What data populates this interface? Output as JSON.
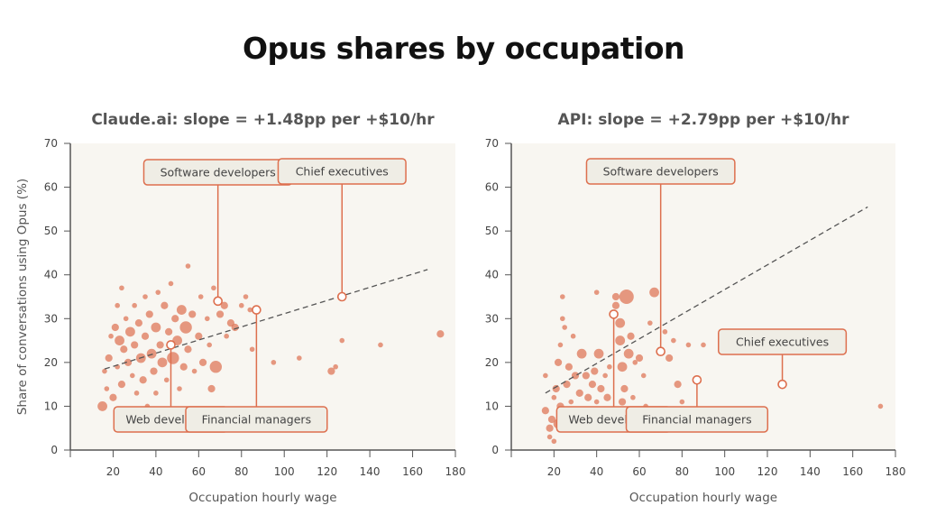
{
  "title": "Opus shares by occupation",
  "chart_data": [
    {
      "type": "scatter",
      "title": "Claude.ai: slope = +1.48pp per +$10/hr",
      "xlabel": "Occupation hourly wage",
      "ylabel": "Share of conversations using Opus (%)",
      "xlim": [
        0,
        180
      ],
      "ylim": [
        0,
        70
      ],
      "xticks": [
        20,
        40,
        60,
        80,
        100,
        120,
        140,
        160,
        180
      ],
      "yticks": [
        0,
        10,
        20,
        30,
        40,
        50,
        60,
        70
      ],
      "grid": false,
      "trend": {
        "x": [
          16,
          167
        ],
        "y": [
          18.5,
          41.2
        ],
        "style": "dashed"
      },
      "points": [
        [
          16,
          18,
          1
        ],
        [
          15,
          10,
          3
        ],
        [
          17,
          14,
          1
        ],
        [
          18,
          21,
          2
        ],
        [
          19,
          26,
          1
        ],
        [
          20,
          12,
          2
        ],
        [
          21,
          28,
          2
        ],
        [
          22,
          19,
          1
        ],
        [
          22,
          33,
          1
        ],
        [
          23,
          25,
          3
        ],
        [
          24,
          15,
          2
        ],
        [
          24,
          37,
          1
        ],
        [
          25,
          23,
          2
        ],
        [
          26,
          30,
          1
        ],
        [
          26,
          8,
          3
        ],
        [
          27,
          20,
          2
        ],
        [
          28,
          27,
          3
        ],
        [
          29,
          17,
          1
        ],
        [
          30,
          33,
          1
        ],
        [
          30,
          24,
          2
        ],
        [
          31,
          13,
          1
        ],
        [
          32,
          29,
          2
        ],
        [
          33,
          21,
          3
        ],
        [
          34,
          16,
          2
        ],
        [
          35,
          35,
          1
        ],
        [
          35,
          26,
          2
        ],
        [
          36,
          10,
          1
        ],
        [
          37,
          31,
          2
        ],
        [
          38,
          22,
          3
        ],
        [
          39,
          18,
          2
        ],
        [
          40,
          28,
          3
        ],
        [
          40,
          13,
          1
        ],
        [
          41,
          36,
          1
        ],
        [
          42,
          24,
          2
        ],
        [
          43,
          20,
          3
        ],
        [
          44,
          33,
          2
        ],
        [
          45,
          16,
          1
        ],
        [
          46,
          27,
          2
        ],
        [
          47,
          38,
          1
        ],
        [
          48,
          21,
          4
        ],
        [
          49,
          30,
          2
        ],
        [
          50,
          25,
          3
        ],
        [
          51,
          14,
          1
        ],
        [
          52,
          32,
          3
        ],
        [
          53,
          19,
          2
        ],
        [
          54,
          28,
          4
        ],
        [
          55,
          23,
          2
        ],
        [
          55,
          42,
          1
        ],
        [
          57,
          31,
          2
        ],
        [
          58,
          18,
          1
        ],
        [
          60,
          26,
          2
        ],
        [
          61,
          35,
          1
        ],
        [
          62,
          20,
          2
        ],
        [
          64,
          30,
          1
        ],
        [
          65,
          24,
          1
        ],
        [
          66,
          14,
          2
        ],
        [
          67,
          37,
          1
        ],
        [
          68,
          19,
          4
        ],
        [
          70,
          31,
          2
        ],
        [
          72,
          33,
          2
        ],
        [
          73,
          26,
          1
        ],
        [
          75,
          29,
          2
        ],
        [
          77,
          28,
          2
        ],
        [
          80,
          33,
          1
        ],
        [
          82,
          35,
          1
        ],
        [
          84,
          32,
          1
        ],
        [
          85,
          23,
          1
        ],
        [
          95,
          20,
          1
        ],
        [
          107,
          21,
          1
        ],
        [
          122,
          18,
          2
        ],
        [
          124,
          19,
          1
        ],
        [
          127,
          25,
          1
        ],
        [
          145,
          24,
          1
        ],
        [
          173,
          26.5,
          2
        ]
      ],
      "highlights": [
        {
          "label": "Software developers",
          "x": 69,
          "y": 34
        },
        {
          "label": "Chief executives",
          "x": 127,
          "y": 35
        },
        {
          "label": "Web developers",
          "x": 47,
          "y": 24
        },
        {
          "label": "Financial managers",
          "x": 87,
          "y": 32
        }
      ]
    },
    {
      "type": "scatter",
      "title": "API: slope = +2.79pp per +$10/hr",
      "xlabel": "Occupation hourly wage",
      "ylabel": "",
      "xlim": [
        0,
        180
      ],
      "ylim": [
        0,
        70
      ],
      "xticks": [
        20,
        40,
        60,
        80,
        100,
        120,
        140,
        160,
        180
      ],
      "yticks": [
        0,
        10,
        20,
        30,
        40,
        50,
        60,
        70
      ],
      "grid": false,
      "trend": {
        "x": [
          16,
          167
        ],
        "y": [
          13,
          55.5
        ],
        "style": "dashed"
      },
      "points": [
        [
          16,
          9,
          2
        ],
        [
          16,
          17,
          1
        ],
        [
          18,
          5,
          2
        ],
        [
          18,
          3,
          1
        ],
        [
          19,
          7,
          2
        ],
        [
          20,
          12,
          1
        ],
        [
          20,
          2,
          1
        ],
        [
          21,
          14,
          2
        ],
        [
          22,
          20,
          2
        ],
        [
          22,
          6,
          3
        ],
        [
          23,
          10,
          2
        ],
        [
          23,
          24,
          1
        ],
        [
          24,
          35,
          1
        ],
        [
          24,
          30,
          1
        ],
        [
          25,
          28,
          1
        ],
        [
          26,
          15,
          2
        ],
        [
          27,
          19,
          2
        ],
        [
          28,
          11,
          1
        ],
        [
          29,
          26,
          1
        ],
        [
          30,
          17,
          2
        ],
        [
          31,
          8,
          2
        ],
        [
          32,
          13,
          2
        ],
        [
          33,
          22,
          3
        ],
        [
          34,
          9,
          1
        ],
        [
          35,
          17,
          2
        ],
        [
          36,
          12,
          2
        ],
        [
          37,
          5,
          1
        ],
        [
          38,
          15,
          2
        ],
        [
          39,
          18,
          2
        ],
        [
          40,
          11,
          1
        ],
        [
          40,
          36,
          1
        ],
        [
          41,
          22,
          3
        ],
        [
          42,
          14,
          2
        ],
        [
          43,
          8,
          2
        ],
        [
          44,
          17,
          1
        ],
        [
          45,
          12,
          2
        ],
        [
          46,
          19,
          1
        ],
        [
          47,
          9,
          2
        ],
        [
          49,
          35,
          2
        ],
        [
          49,
          33,
          2
        ],
        [
          51,
          25,
          3
        ],
        [
          51,
          29,
          3
        ],
        [
          52,
          19,
          3
        ],
        [
          52,
          11,
          2
        ],
        [
          53,
          14,
          2
        ],
        [
          54,
          35,
          5
        ],
        [
          55,
          22,
          3
        ],
        [
          56,
          26,
          2
        ],
        [
          57,
          12,
          1
        ],
        [
          58,
          20,
          1
        ],
        [
          60,
          21,
          2
        ],
        [
          62,
          17,
          1
        ],
        [
          63,
          10,
          1
        ],
        [
          65,
          29,
          1
        ],
        [
          67,
          36,
          3
        ],
        [
          72,
          27,
          1
        ],
        [
          74,
          21,
          2
        ],
        [
          76,
          25,
          1
        ],
        [
          78,
          15,
          2
        ],
        [
          80,
          11,
          1
        ],
        [
          83,
          24,
          1
        ],
        [
          90,
          24,
          1
        ],
        [
          173,
          10,
          1
        ]
      ],
      "highlights": [
        {
          "label": "Software developers",
          "x": 70,
          "y": 22.5
        },
        {
          "label": "Chief executives",
          "x": 127,
          "y": 15
        },
        {
          "label": "Web developers",
          "x": 48,
          "y": 31
        },
        {
          "label": "Financial managers",
          "x": 87,
          "y": 16
        }
      ]
    }
  ],
  "colors": {
    "point": "#dd6f4e",
    "plot_bg": "#f8f6f1",
    "label_bg": "#efede5",
    "axis": "#555555",
    "trend": "#555555"
  }
}
